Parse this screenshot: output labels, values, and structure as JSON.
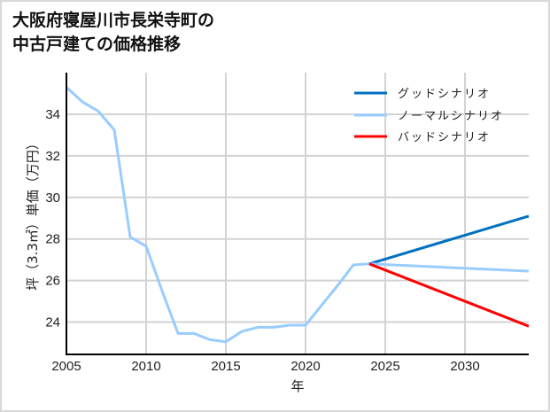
{
  "title": {
    "line1": "大阪府寝屋川市長栄寺町の",
    "line2": "中古戸建ての価格推移"
  },
  "axes": {
    "xlabel": "年",
    "ylabel": "坪（3.3㎡）単価（万円）",
    "xticks": [
      "2005",
      "2010",
      "2015",
      "2020",
      "2025",
      "2030"
    ],
    "yticks": [
      "24",
      "26",
      "28",
      "30",
      "32",
      "34"
    ]
  },
  "legend": {
    "good": "グッドシナリオ",
    "normal": "ノーマルシナリオ",
    "bad": "バッドシナリオ"
  },
  "colors": {
    "good": "#0070c0",
    "normal": "#99ccff",
    "bad": "#ff0000",
    "grid": "#d3d3d3",
    "axis": "#000000"
  },
  "chart_data": {
    "type": "line",
    "title": "大阪府寝屋川市長栄寺町の中古戸建ての価格推移",
    "xlabel": "年",
    "ylabel": "坪（3.3㎡）単価（万円）",
    "xlim": [
      2005,
      2034
    ],
    "ylim": [
      22.6,
      35.8
    ],
    "grid": true,
    "legend_position": "upper right",
    "series": [
      {
        "name": "ノーマルシナリオ (実績)",
        "color": "#99ccff",
        "x": [
          2005,
          2006,
          2007,
          2008,
          2009,
          2010,
          2011,
          2012,
          2013,
          2014,
          2015,
          2016,
          2017,
          2018,
          2019,
          2020,
          2021,
          2022,
          2023,
          2024
        ],
        "y": [
          35.3,
          34.6,
          34.15,
          33.25,
          28.1,
          27.65,
          25.5,
          23.45,
          23.45,
          23.15,
          23.05,
          23.55,
          23.75,
          23.75,
          23.85,
          23.85,
          24.8,
          25.75,
          26.75,
          26.8
        ]
      },
      {
        "name": "グッドシナリオ",
        "color": "#0070c0",
        "x": [
          2024,
          2034
        ],
        "y": [
          26.8,
          29.1
        ]
      },
      {
        "name": "ノーマルシナリオ",
        "color": "#99ccff",
        "x": [
          2024,
          2034
        ],
        "y": [
          26.8,
          26.45
        ]
      },
      {
        "name": "バッドシナリオ",
        "color": "#ff0000",
        "x": [
          2024,
          2034
        ],
        "y": [
          26.8,
          23.8
        ]
      }
    ]
  }
}
